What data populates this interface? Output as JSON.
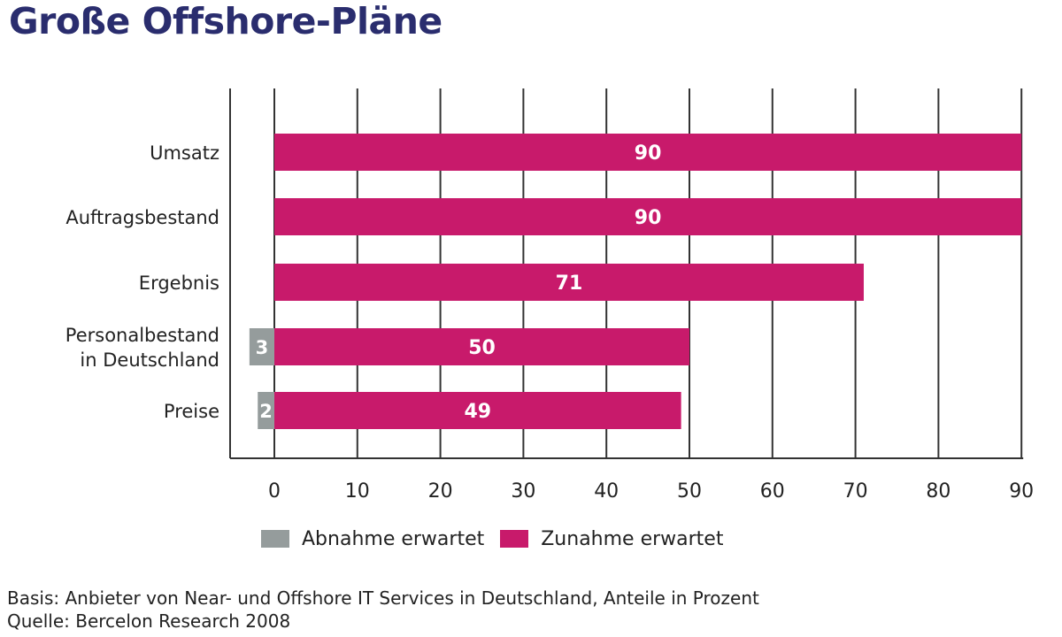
{
  "title": "Große Offshore-Pläne",
  "chart_data": {
    "type": "bar",
    "orientation": "horizontal",
    "stacked": true,
    "categories": [
      "Umsatz",
      "Auftragsbestand",
      "Ergebnis",
      "Personalbestand in Deutschland",
      "Preise"
    ],
    "category_lines": [
      [
        "Umsatz"
      ],
      [
        "Auftragsbestand"
      ],
      [
        "Ergebnis"
      ],
      [
        "Personalbestand",
        "in Deutschland"
      ],
      [
        "Preise"
      ]
    ],
    "series": [
      {
        "name": "Abnahme erwartet",
        "values": [
          null,
          null,
          null,
          3,
          2
        ],
        "direction": "negative",
        "color": "#959c9c"
      },
      {
        "name": "Zunahme erwartet",
        "values": [
          90,
          90,
          71,
          50,
          49
        ],
        "direction": "positive",
        "color": "#c81a6b"
      }
    ],
    "xlim": [
      -5,
      90
    ],
    "xticks": [
      0,
      10,
      20,
      30,
      40,
      50,
      60,
      70,
      80,
      90
    ],
    "grid": true,
    "legend_position": "bottom"
  },
  "footnote": {
    "basis": "Basis: Anbieter von Near- und Offshore IT Services in Deutschland, Anteile in Prozent",
    "source": "Quelle: Bercelon Research 2008"
  }
}
